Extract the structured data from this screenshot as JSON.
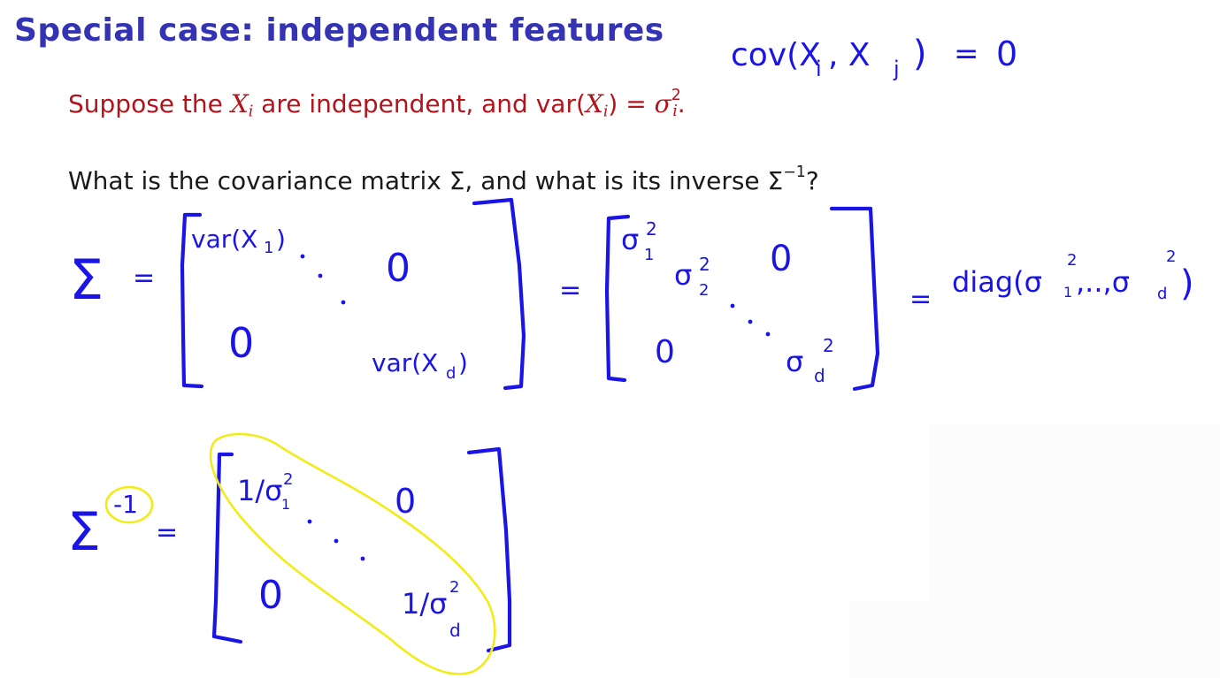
{
  "slide": {
    "title": "Special case: independent features",
    "suppose": {
      "prefix": "Suppose the ",
      "var1": "X",
      "sub1": "i",
      "middle": " are independent, and var(",
      "var2": "X",
      "sub2": "i",
      "after": ") = ",
      "sigma": "σ",
      "sup": "2",
      "sub3": "i",
      "end": "."
    },
    "question": {
      "prefix": "What is the covariance matrix Σ, and what is its inverse Σ",
      "sup": "−1",
      "end": "?"
    }
  },
  "handwriting": {
    "cov": "cov(X",
    "cov_i": "i",
    "cov_comma": ", X",
    "cov_j": "j",
    "cov_close": ")",
    "cov_eq": "=",
    "cov_zero": "0",
    "sigma": "Σ",
    "eq": "=",
    "m1_top": "var(X",
    "m1_top_sub": "1",
    "m1_top_close": ")",
    "m1_zero_tr": "0",
    "m1_zero_bl": "0",
    "m1_bottom": "var(X",
    "m1_bottom_sub": "d",
    "m1_bottom_close": ")",
    "m2_s1": "σ",
    "m2_s1_sup": "2",
    "m2_s1_sub": "1",
    "m2_s2": "σ",
    "m2_s2_sup": "2",
    "m2_s2_sub": "2",
    "m2_zero_tr": "0",
    "m2_zero_bl": "0",
    "m2_sd": "σ",
    "m2_sd_sup": "2",
    "m2_sd_sub": "d",
    "diag": "diag(σ",
    "diag_s1_sup": "2",
    "diag_s1_sub": "1",
    "diag_mid": ",..,σ",
    "diag_sd_sup": "2",
    "diag_sd_sub": "d",
    "diag_close": ")",
    "inv_sup": "-1",
    "inv_top": "1/σ",
    "inv_top_sup": "2",
    "inv_top_sub": "1",
    "inv_zero_tr": "0",
    "inv_zero_bl": "0",
    "inv_bottom": "1/σ",
    "inv_bottom_sup": "2",
    "inv_bottom_sub": "d"
  },
  "colors": {
    "title": "#3333b3",
    "red_text": "#b3141c",
    "body_text": "#1a1a1a",
    "ink": "#1a14e6",
    "highlight": "#f1ec18"
  }
}
